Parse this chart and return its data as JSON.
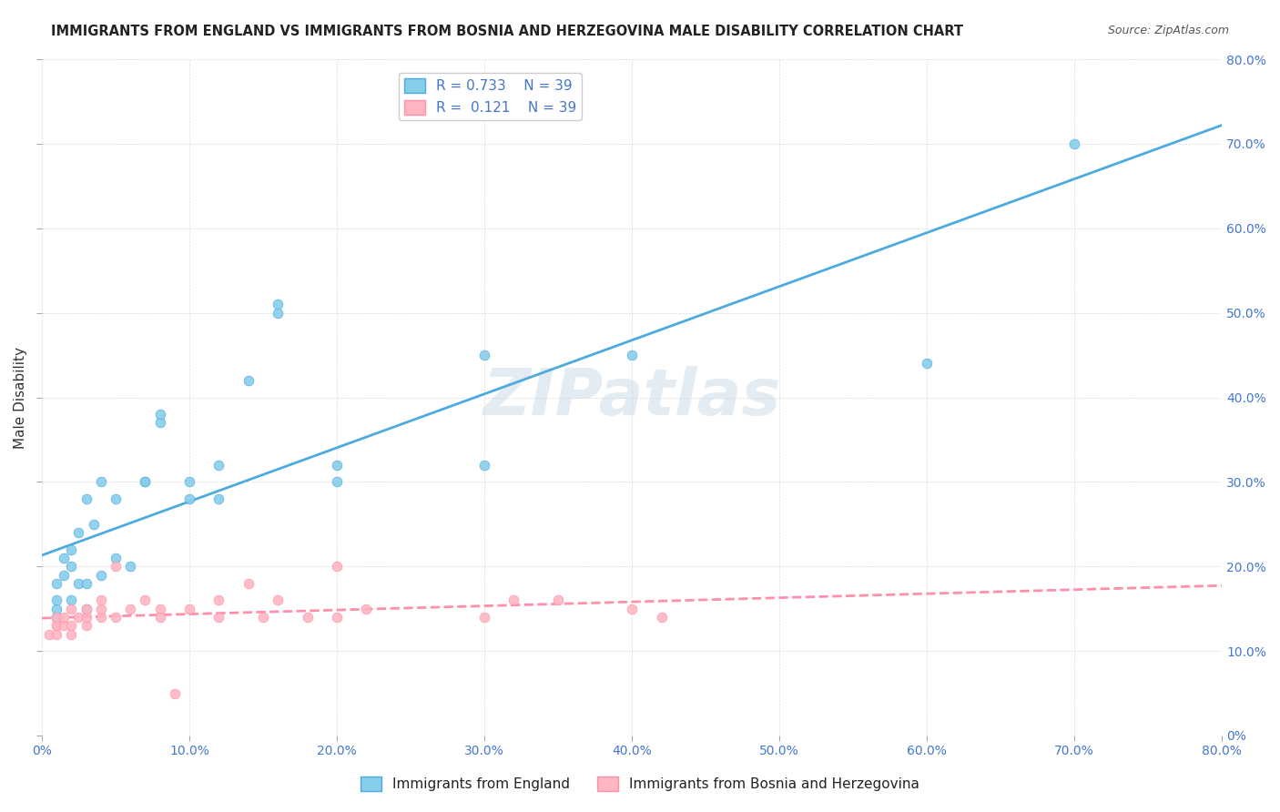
{
  "title": "IMMIGRANTS FROM ENGLAND VS IMMIGRANTS FROM BOSNIA AND HERZEGOVINA MALE DISABILITY CORRELATION CHART",
  "source": "Source: ZipAtlas.com",
  "xlabel": "",
  "ylabel": "Male Disability",
  "xlim": [
    0.0,
    0.8
  ],
  "ylim": [
    0.0,
    0.8
  ],
  "xticks": [
    0.0,
    0.1,
    0.2,
    0.3,
    0.4,
    0.5,
    0.6,
    0.7,
    0.8
  ],
  "yticks": [
    0.0,
    0.1,
    0.2,
    0.3,
    0.4,
    0.5,
    0.6,
    0.7,
    0.8
  ],
  "england_R": 0.733,
  "england_N": 39,
  "bosnia_R": 0.121,
  "bosnia_N": 39,
  "england_color": "#87CEEB",
  "bosnia_color": "#FFB6C1",
  "england_line_color": "#4DAADD",
  "bosnia_line_color": "#FF8FAB",
  "legend_label_england": "Immigrants from England",
  "legend_label_bosnia": "Immigrants from Bosnia and Herzegovina",
  "watermark": "ZIPatlas",
  "watermark_color": "#C8D8E8",
  "england_x": [
    0.01,
    0.01,
    0.01,
    0.01,
    0.01,
    0.015,
    0.015,
    0.02,
    0.02,
    0.02,
    0.025,
    0.025,
    0.03,
    0.03,
    0.03,
    0.035,
    0.04,
    0.04,
    0.05,
    0.05,
    0.06,
    0.07,
    0.07,
    0.08,
    0.08,
    0.1,
    0.1,
    0.12,
    0.12,
    0.14,
    0.16,
    0.16,
    0.2,
    0.2,
    0.3,
    0.3,
    0.4,
    0.6,
    0.7
  ],
  "england_y": [
    0.14,
    0.14,
    0.15,
    0.16,
    0.18,
    0.19,
    0.21,
    0.16,
    0.2,
    0.22,
    0.18,
    0.24,
    0.15,
    0.18,
    0.28,
    0.25,
    0.19,
    0.3,
    0.21,
    0.28,
    0.2,
    0.3,
    0.3,
    0.37,
    0.38,
    0.28,
    0.3,
    0.28,
    0.32,
    0.42,
    0.5,
    0.51,
    0.3,
    0.32,
    0.32,
    0.45,
    0.45,
    0.44,
    0.7
  ],
  "bosnia_x": [
    0.005,
    0.01,
    0.01,
    0.01,
    0.01,
    0.015,
    0.015,
    0.02,
    0.02,
    0.02,
    0.025,
    0.03,
    0.03,
    0.03,
    0.04,
    0.04,
    0.04,
    0.05,
    0.05,
    0.06,
    0.07,
    0.08,
    0.08,
    0.09,
    0.1,
    0.12,
    0.12,
    0.14,
    0.15,
    0.16,
    0.18,
    0.2,
    0.2,
    0.22,
    0.3,
    0.32,
    0.35,
    0.4,
    0.42
  ],
  "bosnia_y": [
    0.12,
    0.12,
    0.13,
    0.13,
    0.14,
    0.13,
    0.14,
    0.12,
    0.13,
    0.15,
    0.14,
    0.13,
    0.14,
    0.15,
    0.14,
    0.15,
    0.16,
    0.2,
    0.14,
    0.15,
    0.16,
    0.15,
    0.14,
    0.05,
    0.15,
    0.14,
    0.16,
    0.18,
    0.14,
    0.16,
    0.14,
    0.2,
    0.14,
    0.15,
    0.14,
    0.16,
    0.16,
    0.15,
    0.14
  ]
}
